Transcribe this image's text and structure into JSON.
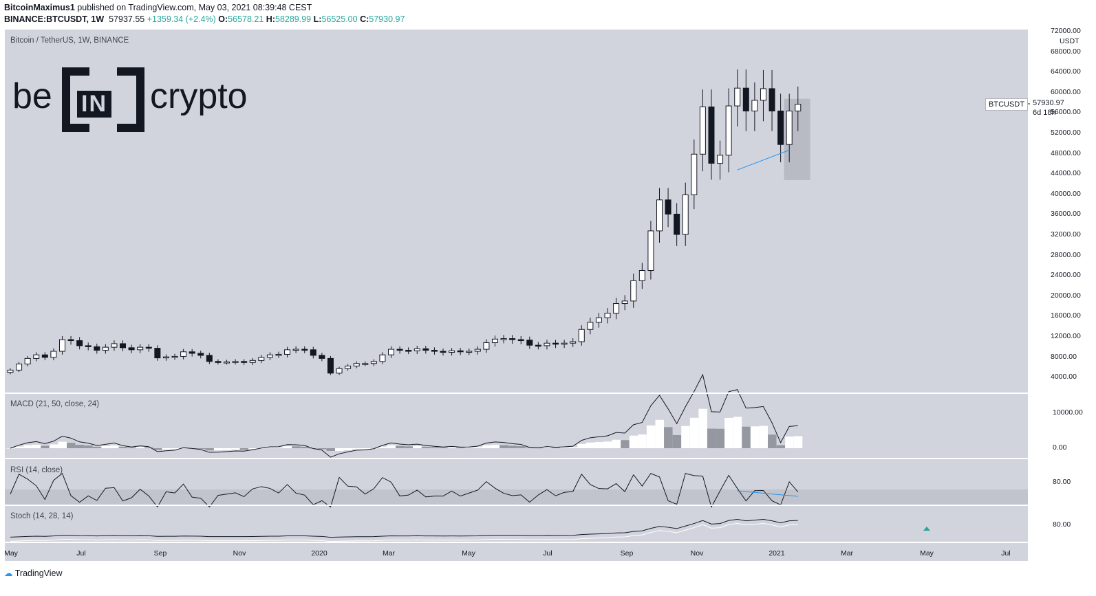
{
  "header": {
    "author": "BitcoinMaximus1",
    "published": "published on TradingView.com, May 03, 2021 08:39:48 CEST",
    "symbol": "BINANCE:BTCUSDT, 1W",
    "last": "57937.55",
    "change": "+1359.34 (+2.4%)",
    "o_label": "O:",
    "o": "56578.21",
    "h_label": "H:",
    "h": "58289.99",
    "l_label": "L:",
    "l": "56525.00",
    "c_label": "C:",
    "c": "57930.97"
  },
  "pane_labels": {
    "main": "Bitcoin / TetherUS, 1W, BINANCE",
    "macd": "MACD (21, 50, close, 24)",
    "rsi": "RSI (14, close)",
    "stoch": "Stoch (14, 28, 14)"
  },
  "logo": {
    "left": "be",
    "mid": "IN",
    "right": "crypto"
  },
  "price_axis": {
    "currency": "USDT",
    "ticks": [
      "72000.00",
      "68000.00",
      "64000.00",
      "60000.00",
      "56000.00",
      "52000.00",
      "48000.00",
      "44000.00",
      "40000.00",
      "36000.00",
      "32000.00",
      "28000.00",
      "24000.00",
      "20000.00",
      "16000.00",
      "12000.00",
      "8000.00",
      "4000.00"
    ],
    "symbol_tag": "BTCUSDT",
    "last_price": "57930.97",
    "countdown": "6d 18h"
  },
  "macd_axis": [
    "10000.00",
    "0.00"
  ],
  "rsi_axis": [
    "80.00"
  ],
  "stoch_axis": [
    "80.00"
  ],
  "time_axis": [
    "May",
    "Jul",
    "Sep",
    "Nov",
    "2020",
    "Mar",
    "May",
    "Jul",
    "Sep",
    "Nov",
    "2021",
    "Mar",
    "May",
    "Jul"
  ],
  "footer": {
    "brand": "TradingView"
  },
  "colors": {
    "pane_bg": "#d1d4dc",
    "up": "#ffffff",
    "down": "#131722",
    "trendline": "#2196f3",
    "highlight": "#b8bbc4"
  },
  "chart_data": {
    "type": "candlestick",
    "title": "Bitcoin / TetherUS, 1W, BINANCE",
    "ylabel": "USDT",
    "ylim": [
      0,
      72000
    ],
    "closes": [
      5600,
      6800,
      7900,
      8600,
      8100,
      9300,
      11600,
      11400,
      10400,
      10200,
      9500,
      10100,
      10800,
      10000,
      9600,
      10100,
      9900,
      8000,
      8200,
      8300,
      9200,
      8900,
      8500,
      7300,
      7200,
      7200,
      7300,
      7100,
      7500,
      8100,
      8600,
      8700,
      9600,
      9700,
      9600,
      8500,
      7900,
      5000,
      5900,
      6400,
      6900,
      6900,
      7300,
      8600,
      9700,
      9500,
      9400,
      9800,
      9500,
      9300,
      9100,
      9400,
      9200,
      9300,
      9700,
      11000,
      11700,
      11800,
      11600,
      11500,
      10500,
      10400,
      10900,
      10700,
      10900,
      11200,
      13600,
      15000,
      15900,
      16800,
      18700,
      19200,
      23200,
      25200,
      33000,
      39100,
      36300,
      32300,
      40100,
      48100,
      57400,
      46300,
      47900,
      57600,
      61100,
      56600,
      58700,
      61000,
      56600,
      50000,
      56600,
      57930
    ],
    "trendline_price": {
      "from": 45000,
      "to": 48900
    },
    "highlight_zone": [
      43000,
      59000
    ]
  }
}
